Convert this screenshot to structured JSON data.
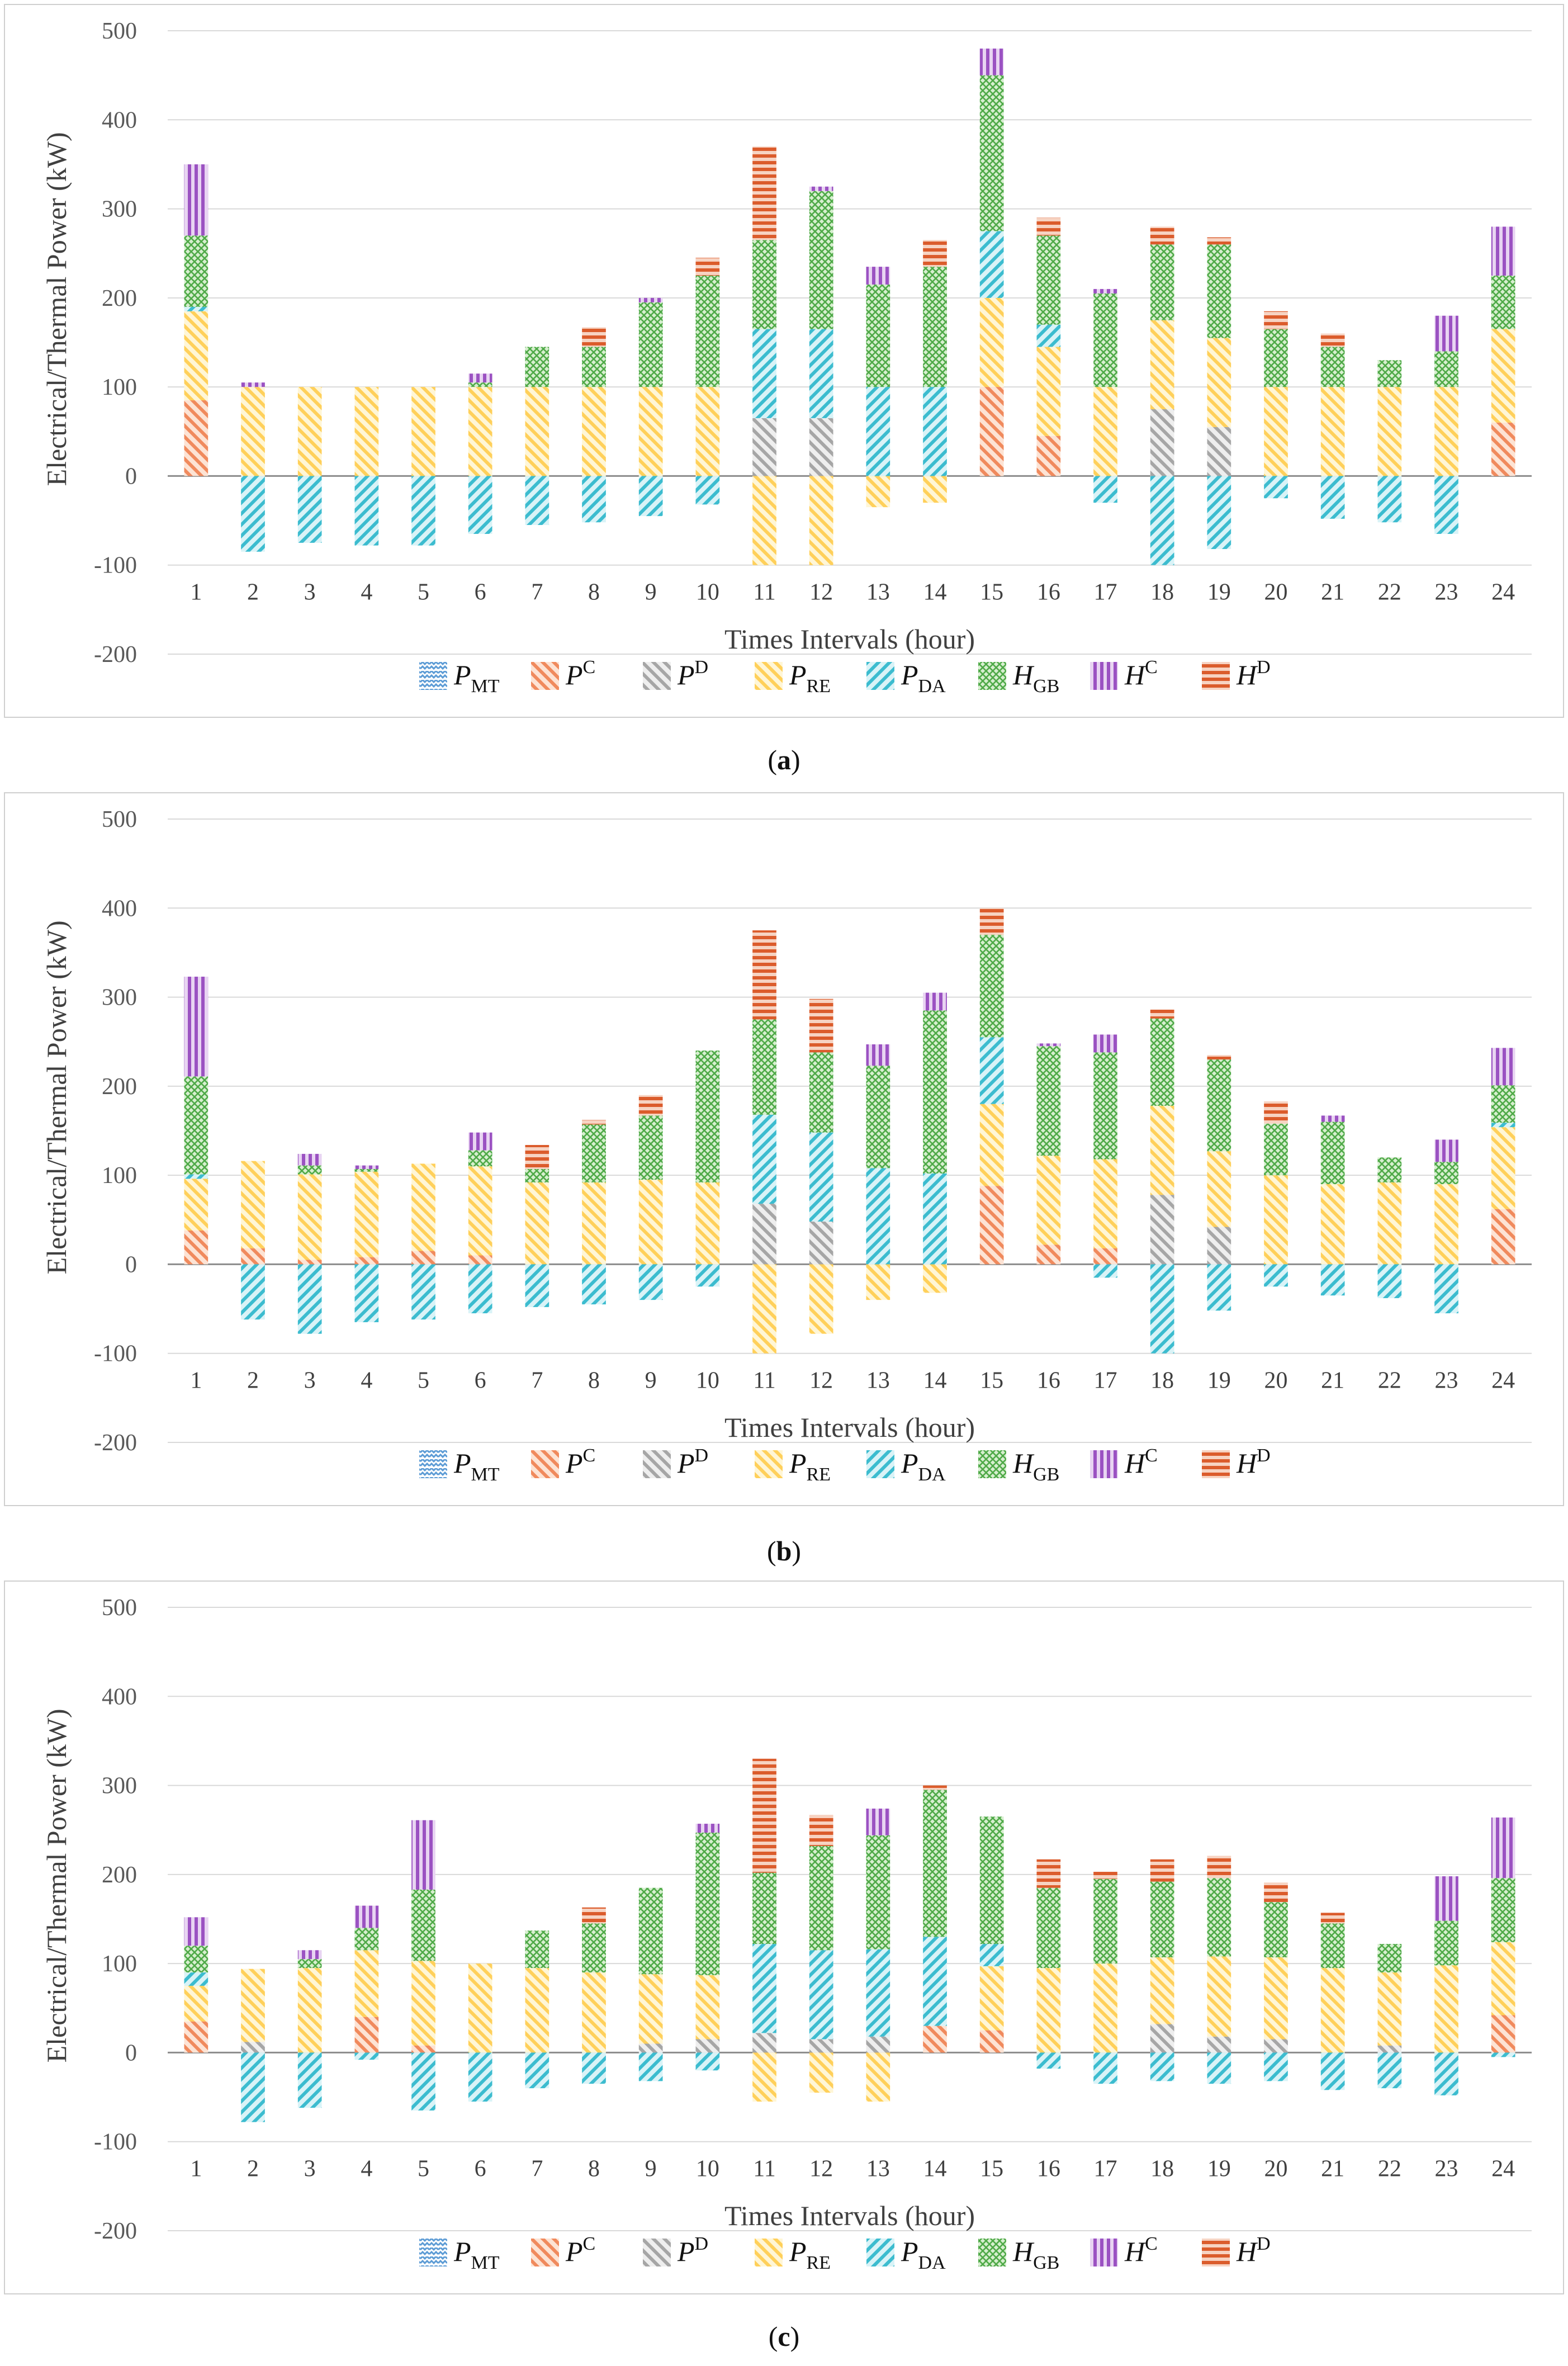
{
  "chart_data": [
    {
      "type": "bar",
      "stacked": true,
      "caption": "(a)",
      "caption_letter": "a",
      "xlabel": "Times Intervals (hour)",
      "ylabel": "Electrical/Thermal Power (kW)",
      "ylim": [
        -200,
        500
      ],
      "yticks": [
        500,
        400,
        300,
        200,
        100,
        0,
        -100,
        -200
      ],
      "grid": true,
      "legend_position": "bottom",
      "categories": [
        "1",
        "2",
        "3",
        "4",
        "5",
        "6",
        "7",
        "8",
        "9",
        "10",
        "11",
        "12",
        "13",
        "14",
        "15",
        "16",
        "17",
        "18",
        "19",
        "20",
        "21",
        "22",
        "23",
        "24"
      ],
      "series": [
        {
          "name": "P_MT",
          "label": "P",
          "sub": "MT",
          "sup": "",
          "values": [
            0,
            0,
            0,
            0,
            0,
            0,
            0,
            0,
            0,
            0,
            0,
            0,
            0,
            0,
            0,
            0,
            0,
            0,
            0,
            0,
            0,
            0,
            0,
            0
          ]
        },
        {
          "name": "P^C",
          "label": "P",
          "sub": "",
          "sup": "C",
          "values": [
            85,
            0,
            0,
            0,
            0,
            0,
            0,
            0,
            0,
            0,
            0,
            0,
            0,
            0,
            100,
            45,
            0,
            0,
            0,
            0,
            0,
            0,
            0,
            60
          ]
        },
        {
          "name": "P^D",
          "label": "P",
          "sub": "",
          "sup": "D",
          "values": [
            0,
            0,
            0,
            0,
            0,
            0,
            0,
            0,
            0,
            0,
            65,
            65,
            0,
            0,
            0,
            0,
            0,
            75,
            55,
            0,
            0,
            0,
            0,
            0
          ]
        },
        {
          "name": "P_RE",
          "label": "P",
          "sub": "RE",
          "sup": "",
          "values": [
            100,
            100,
            100,
            100,
            100,
            100,
            100,
            100,
            100,
            100,
            -100,
            -100,
            -35,
            -30,
            100,
            100,
            100,
            100,
            100,
            100,
            100,
            100,
            100,
            105
          ]
        },
        {
          "name": "P_DA",
          "label": "P",
          "sub": "DA",
          "sup": "",
          "values": [
            5,
            -85,
            -75,
            -78,
            -78,
            -65,
            -55,
            -52,
            -45,
            -32,
            100,
            100,
            100,
            100,
            75,
            25,
            -30,
            -100,
            -82,
            -25,
            -48,
            -52,
            -65,
            0
          ]
        },
        {
          "name": "H_GB",
          "label": "H",
          "sub": "GB",
          "sup": "",
          "values": [
            80,
            0,
            0,
            0,
            0,
            5,
            45,
            45,
            95,
            125,
            100,
            155,
            115,
            135,
            175,
            100,
            105,
            85,
            105,
            65,
            45,
            30,
            40,
            60
          ]
        },
        {
          "name": "H^C",
          "label": "H",
          "sub": "",
          "sup": "C",
          "values": [
            80,
            5,
            0,
            0,
            0,
            10,
            0,
            0,
            5,
            0,
            0,
            5,
            20,
            0,
            30,
            0,
            5,
            0,
            0,
            0,
            0,
            0,
            40,
            55
          ]
        },
        {
          "name": "H^D",
          "label": "H",
          "sub": "",
          "sup": "D",
          "values": [
            0,
            0,
            0,
            0,
            0,
            0,
            0,
            22,
            0,
            20,
            105,
            0,
            0,
            30,
            0,
            20,
            0,
            20,
            8,
            20,
            15,
            0,
            0,
            0
          ]
        }
      ]
    },
    {
      "type": "bar",
      "stacked": true,
      "caption": "(b)",
      "caption_letter": "b",
      "xlabel": "Times Intervals (hour)",
      "ylabel": "Electrical/Thermal Power (kW)",
      "ylim": [
        -200,
        500
      ],
      "yticks": [
        500,
        400,
        300,
        200,
        100,
        0,
        -100,
        -200
      ],
      "grid": true,
      "legend_position": "bottom",
      "categories": [
        "1",
        "2",
        "3",
        "4",
        "5",
        "6",
        "7",
        "8",
        "9",
        "10",
        "11",
        "12",
        "13",
        "14",
        "15",
        "16",
        "17",
        "18",
        "19",
        "20",
        "21",
        "22",
        "23",
        "24"
      ],
      "series": [
        {
          "name": "P_MT",
          "label": "P",
          "sub": "MT",
          "sup": "",
          "values": [
            0,
            0,
            0,
            0,
            0,
            0,
            0,
            0,
            0,
            0,
            0,
            0,
            0,
            0,
            0,
            0,
            0,
            0,
            0,
            0,
            0,
            0,
            0,
            0
          ]
        },
        {
          "name": "P^C",
          "label": "P",
          "sub": "",
          "sup": "C",
          "values": [
            38,
            18,
            5,
            8,
            15,
            10,
            0,
            0,
            0,
            0,
            0,
            0,
            0,
            0,
            88,
            22,
            18,
            0,
            0,
            0,
            0,
            0,
            0,
            62
          ]
        },
        {
          "name": "P^D",
          "label": "P",
          "sub": "",
          "sup": "D",
          "values": [
            0,
            0,
            0,
            0,
            0,
            0,
            0,
            0,
            0,
            0,
            68,
            48,
            0,
            0,
            0,
            0,
            0,
            78,
            42,
            0,
            0,
            0,
            0,
            0
          ]
        },
        {
          "name": "P_RE",
          "label": "P",
          "sub": "RE",
          "sup": "",
          "values": [
            58,
            98,
            96,
            96,
            98,
            100,
            92,
            92,
            95,
            92,
            -100,
            -78,
            -40,
            -32,
            92,
            100,
            100,
            100,
            85,
            100,
            90,
            92,
            90,
            92
          ]
        },
        {
          "name": "P_DA",
          "label": "P",
          "sub": "DA",
          "sup": "",
          "values": [
            5,
            -62,
            -78,
            -65,
            -62,
            -55,
            -48,
            -45,
            -40,
            -25,
            100,
            100,
            108,
            102,
            75,
            0,
            -15,
            -100,
            -52,
            -25,
            -35,
            -38,
            -55,
            5
          ]
        },
        {
          "name": "H_GB",
          "label": "H",
          "sub": "GB",
          "sup": "",
          "values": [
            110,
            0,
            10,
            3,
            0,
            18,
            15,
            65,
            72,
            148,
            107,
            90,
            115,
            183,
            115,
            123,
            120,
            98,
            103,
            58,
            70,
            28,
            25,
            42
          ]
        },
        {
          "name": "H^C",
          "label": "H",
          "sub": "",
          "sup": "C",
          "values": [
            112,
            0,
            13,
            4,
            0,
            20,
            0,
            0,
            0,
            0,
            0,
            0,
            24,
            20,
            0,
            3,
            20,
            0,
            0,
            0,
            7,
            0,
            25,
            42
          ]
        },
        {
          "name": "H^D",
          "label": "H",
          "sub": "",
          "sup": "D",
          "values": [
            0,
            0,
            0,
            0,
            0,
            0,
            27,
            5,
            23,
            0,
            100,
            60,
            0,
            0,
            30,
            0,
            0,
            10,
            5,
            25,
            0,
            0,
            0,
            0
          ]
        }
      ]
    },
    {
      "type": "bar",
      "stacked": true,
      "caption": "(c)",
      "caption_letter": "c",
      "xlabel": "Times Intervals (hour)",
      "ylabel": "Electrical/Thermal Power (kW)",
      "ylim": [
        -200,
        500
      ],
      "yticks": [
        500,
        400,
        300,
        200,
        100,
        0,
        -100,
        -200
      ],
      "grid": true,
      "legend_position": "bottom",
      "categories": [
        "1",
        "2",
        "3",
        "4",
        "5",
        "6",
        "7",
        "8",
        "9",
        "10",
        "11",
        "12",
        "13",
        "14",
        "15",
        "16",
        "17",
        "18",
        "19",
        "20",
        "21",
        "22",
        "23",
        "24"
      ],
      "series": [
        {
          "name": "P_MT",
          "label": "P",
          "sub": "MT",
          "sup": "",
          "values": [
            0,
            0,
            0,
            0,
            0,
            0,
            0,
            0,
            0,
            0,
            0,
            0,
            0,
            0,
            0,
            0,
            0,
            0,
            0,
            0,
            0,
            0,
            0,
            0
          ]
        },
        {
          "name": "P^C",
          "label": "P",
          "sub": "",
          "sup": "C",
          "values": [
            35,
            0,
            0,
            40,
            8,
            0,
            0,
            0,
            0,
            0,
            0,
            0,
            0,
            30,
            25,
            0,
            0,
            0,
            0,
            0,
            0,
            0,
            0,
            42
          ]
        },
        {
          "name": "P^D",
          "label": "P",
          "sub": "",
          "sup": "D",
          "values": [
            0,
            12,
            0,
            0,
            0,
            0,
            0,
            0,
            10,
            15,
            22,
            15,
            18,
            0,
            0,
            0,
            0,
            32,
            18,
            15,
            0,
            8,
            0,
            0
          ]
        },
        {
          "name": "P_RE",
          "label": "P",
          "sub": "RE",
          "sup": "",
          "values": [
            40,
            82,
            95,
            75,
            95,
            100,
            95,
            90,
            78,
            72,
            -55,
            -45,
            -55,
            0,
            72,
            95,
            100,
            75,
            90,
            92,
            95,
            82,
            98,
            82
          ]
        },
        {
          "name": "P_DA",
          "label": "P",
          "sub": "DA",
          "sup": "",
          "values": [
            15,
            -78,
            -62,
            -8,
            -65,
            -55,
            -40,
            -35,
            -32,
            -20,
            100,
            100,
            98,
            100,
            25,
            -18,
            -35,
            -32,
            -35,
            -32,
            -42,
            -40,
            -48,
            -5
          ]
        },
        {
          "name": "H_GB",
          "label": "H",
          "sub": "GB",
          "sup": "",
          "values": [
            30,
            0,
            10,
            25,
            80,
            0,
            42,
            55,
            97,
            160,
            80,
            117,
            128,
            165,
            143,
            90,
            95,
            85,
            88,
            62,
            50,
            32,
            50,
            72
          ]
        },
        {
          "name": "H^C",
          "label": "H",
          "sub": "",
          "sup": "C",
          "values": [
            32,
            0,
            10,
            25,
            78,
            0,
            0,
            0,
            0,
            10,
            0,
            0,
            30,
            0,
            0,
            0,
            0,
            0,
            0,
            0,
            0,
            0,
            50,
            68
          ]
        },
        {
          "name": "H^D",
          "label": "H",
          "sub": "",
          "sup": "D",
          "values": [
            0,
            0,
            0,
            0,
            0,
            0,
            0,
            18,
            0,
            0,
            128,
            35,
            0,
            5,
            0,
            32,
            8,
            25,
            25,
            22,
            12,
            0,
            0,
            0
          ]
        }
      ]
    }
  ],
  "colors": {
    "P_MT": "#5b9bd5",
    "P^C": "#f4a582",
    "P^D": "#b4b4b4",
    "P_RE": "#ffd966",
    "P_DA": "#4dc3d4",
    "H_GB": "#5fb85a",
    "H^C": "#a05fc4",
    "H^D": "#e0673a",
    "grid": "#d9d9d9",
    "frame": "#cfcfcf"
  }
}
